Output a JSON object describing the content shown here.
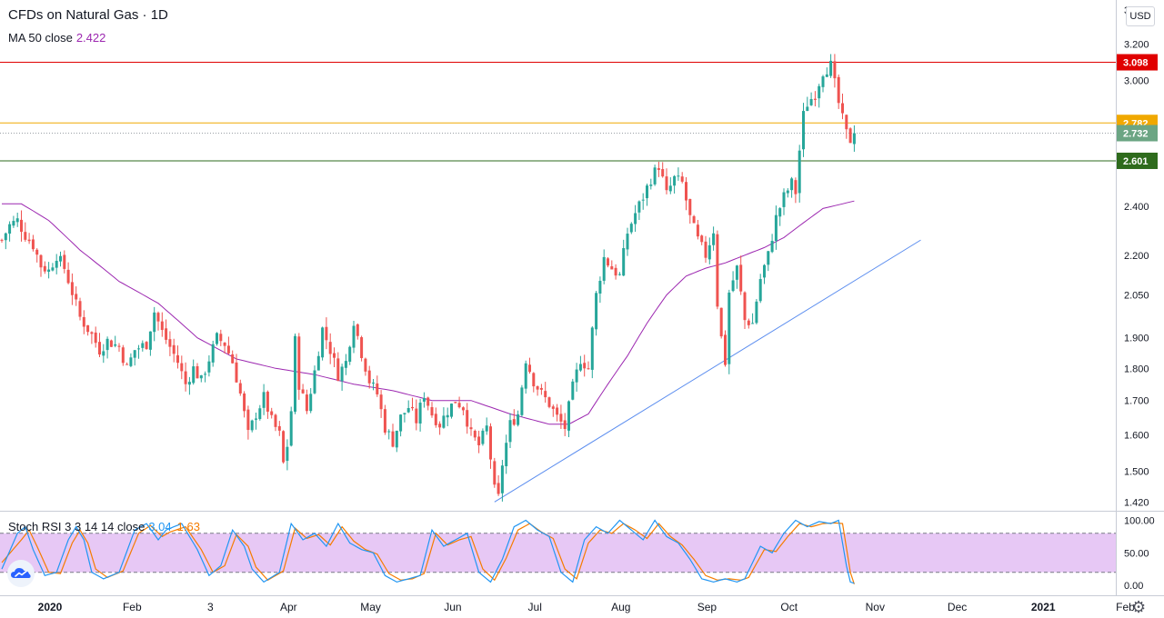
{
  "legend": {
    "symbol": "CFDs on Natural Gas · 1D",
    "ma_label": "MA 50 close",
    "ma_value": "2.422",
    "osc_label": "Stoch RSI 3 3 14 14 close",
    "osc_k": "3.04",
    "osc_d": "1.63"
  },
  "currency_button": "USD",
  "icons": {
    "logo": "tradingview-logo-icon",
    "settings": "gear-icon"
  },
  "colors": {
    "up": "#26a69a",
    "down": "#ef5350",
    "ma": "#9c27b0",
    "trendline": "#5b8def",
    "resistance": "#e00000",
    "mid_level": "#f0a800",
    "support": "#2e6b1c",
    "last_price": "#6ba583",
    "stoch_k": "#2196f3",
    "stoch_d": "#f57c00",
    "stoch_band": "#e7c8f5"
  },
  "chart_data": {
    "type": "candlestick",
    "title": "CFDs on Natural Gas · 1D",
    "x_axis_ticks": [
      "2020",
      "Feb",
      "3",
      "Apr",
      "May",
      "Jun",
      "Jul",
      "Aug",
      "Sep",
      "Oct",
      "Nov",
      "Dec",
      "2021",
      "Feb"
    ],
    "y_axis_ticks": [
      "3.400",
      "3.200",
      "3.000",
      "2.400",
      "2.200",
      "2.050",
      "1.900",
      "1.800",
      "1.700",
      "1.600",
      "1.500",
      "1.420"
    ],
    "y_scale": "log",
    "horizontal_levels": [
      {
        "value": 3.098,
        "label": "3.098",
        "color": "#e00000"
      },
      {
        "value": 2.782,
        "label": "2.782",
        "color": "#f0a800"
      },
      {
        "value": 2.601,
        "label": "2.601",
        "color": "#2e6b1c"
      }
    ],
    "last_price": {
      "value": 2.732,
      "label": "2.732"
    },
    "trendline": {
      "from": [
        126,
        1.42
      ],
      "to": [
        235,
        2.26
      ]
    },
    "close_anchors": [
      [
        0,
        2.26
      ],
      [
        2,
        2.32
      ],
      [
        4,
        2.34
      ],
      [
        6,
        2.28
      ],
      [
        8,
        2.24
      ],
      [
        10,
        2.16
      ],
      [
        12,
        2.14
      ],
      [
        14,
        2.2
      ],
      [
        16,
        2.15
      ],
      [
        18,
        2.06
      ],
      [
        20,
        1.97
      ],
      [
        23,
        1.91
      ],
      [
        25,
        1.86
      ],
      [
        27,
        1.89
      ],
      [
        30,
        1.87
      ],
      [
        32,
        1.8
      ],
      [
        34,
        1.86
      ],
      [
        37,
        1.88
      ],
      [
        39,
        1.99
      ],
      [
        41,
        1.92
      ],
      [
        43,
        1.87
      ],
      [
        45,
        1.82
      ],
      [
        47,
        1.75
      ],
      [
        49,
        1.8
      ],
      [
        51,
        1.76
      ],
      [
        53,
        1.83
      ],
      [
        55,
        1.9
      ],
      [
        57,
        1.88
      ],
      [
        59,
        1.82
      ],
      [
        61,
        1.72
      ],
      [
        63,
        1.6
      ],
      [
        65,
        1.66
      ],
      [
        67,
        1.71
      ],
      [
        69,
        1.64
      ],
      [
        71,
        1.6
      ],
      [
        72,
        1.52
      ],
      [
        73,
        1.57
      ],
      [
        74,
        1.67
      ],
      [
        75,
        1.89
      ],
      [
        76,
        1.75
      ],
      [
        78,
        1.67
      ],
      [
        80,
        1.79
      ],
      [
        82,
        1.93
      ],
      [
        84,
        1.86
      ],
      [
        86,
        1.78
      ],
      [
        88,
        1.82
      ],
      [
        90,
        1.96
      ],
      [
        92,
        1.85
      ],
      [
        94,
        1.76
      ],
      [
        96,
        1.72
      ],
      [
        98,
        1.62
      ],
      [
        100,
        1.58
      ],
      [
        102,
        1.65
      ],
      [
        104,
        1.68
      ],
      [
        106,
        1.64
      ],
      [
        108,
        1.72
      ],
      [
        110,
        1.66
      ],
      [
        112,
        1.63
      ],
      [
        114,
        1.67
      ],
      [
        116,
        1.7
      ],
      [
        118,
        1.68
      ],
      [
        120,
        1.6
      ],
      [
        122,
        1.57
      ],
      [
        124,
        1.62
      ],
      [
        126,
        1.45
      ],
      [
        127,
        1.43
      ],
      [
        128,
        1.52
      ],
      [
        130,
        1.63
      ],
      [
        132,
        1.66
      ],
      [
        134,
        1.83
      ],
      [
        136,
        1.76
      ],
      [
        138,
        1.72
      ],
      [
        140,
        1.69
      ],
      [
        142,
        1.65
      ],
      [
        144,
        1.62
      ],
      [
        146,
        1.74
      ],
      [
        148,
        1.83
      ],
      [
        150,
        1.8
      ],
      [
        152,
        2.05
      ],
      [
        154,
        2.19
      ],
      [
        156,
        2.15
      ],
      [
        158,
        2.12
      ],
      [
        160,
        2.29
      ],
      [
        162,
        2.37
      ],
      [
        164,
        2.44
      ],
      [
        166,
        2.52
      ],
      [
        168,
        2.58
      ],
      [
        170,
        2.45
      ],
      [
        172,
        2.52
      ],
      [
        174,
        2.5
      ],
      [
        176,
        2.35
      ],
      [
        178,
        2.26
      ],
      [
        180,
        2.2
      ],
      [
        182,
        2.3
      ],
      [
        183,
        2.02
      ],
      [
        184,
        1.9
      ],
      [
        185,
        1.82
      ],
      [
        186,
        2.06
      ],
      [
        188,
        2.15
      ],
      [
        190,
        1.96
      ],
      [
        192,
        1.95
      ],
      [
        194,
        2.11
      ],
      [
        196,
        2.2
      ],
      [
        198,
        2.35
      ],
      [
        200,
        2.44
      ],
      [
        202,
        2.5
      ],
      [
        203,
        2.46
      ],
      [
        204,
        2.65
      ],
      [
        205,
        2.82
      ],
      [
        206,
        2.88
      ],
      [
        208,
        2.93
      ],
      [
        210,
        3.05
      ],
      [
        212,
        3.08
      ],
      [
        213,
        2.98
      ],
      [
        214,
        2.88
      ],
      [
        215,
        2.8
      ],
      [
        216,
        2.73
      ],
      [
        217,
        2.7
      ],
      [
        218,
        2.732
      ]
    ],
    "ma50_anchors": [
      [
        0,
        2.41
      ],
      [
        5,
        2.41
      ],
      [
        12,
        2.34
      ],
      [
        20,
        2.22
      ],
      [
        30,
        2.1
      ],
      [
        40,
        2.02
      ],
      [
        50,
        1.9
      ],
      [
        60,
        1.83
      ],
      [
        70,
        1.8
      ],
      [
        80,
        1.78
      ],
      [
        90,
        1.75
      ],
      [
        100,
        1.73
      ],
      [
        110,
        1.7
      ],
      [
        120,
        1.7
      ],
      [
        130,
        1.66
      ],
      [
        140,
        1.63
      ],
      [
        145,
        1.63
      ],
      [
        150,
        1.66
      ],
      [
        155,
        1.75
      ],
      [
        160,
        1.84
      ],
      [
        165,
        1.95
      ],
      [
        170,
        2.05
      ],
      [
        175,
        2.12
      ],
      [
        180,
        2.15
      ],
      [
        185,
        2.17
      ],
      [
        190,
        2.2
      ],
      [
        195,
        2.23
      ],
      [
        200,
        2.27
      ],
      [
        205,
        2.33
      ],
      [
        210,
        2.39
      ],
      [
        215,
        2.41
      ],
      [
        218,
        2.422
      ]
    ],
    "stoch_rsi": {
      "label": "Stoch RSI 3 3 14 14 close",
      "k": 3.04,
      "d": 1.63,
      "y_axis_ticks": [
        "100.00",
        "50.00",
        "0.00"
      ],
      "bands": [
        80,
        20
      ],
      "k_anchors": [
        [
          0,
          25
        ],
        [
          4,
          80
        ],
        [
          6,
          90
        ],
        [
          8,
          55
        ],
        [
          11,
          15
        ],
        [
          14,
          20
        ],
        [
          17,
          70
        ],
        [
          19,
          90
        ],
        [
          21,
          70
        ],
        [
          23,
          20
        ],
        [
          26,
          10
        ],
        [
          30,
          20
        ],
        [
          34,
          85
        ],
        [
          37,
          95
        ],
        [
          40,
          70
        ],
        [
          42,
          85
        ],
        [
          46,
          95
        ],
        [
          50,
          55
        ],
        [
          53,
          15
        ],
        [
          56,
          30
        ],
        [
          59,
          85
        ],
        [
          62,
          60
        ],
        [
          64,
          25
        ],
        [
          67,
          5
        ],
        [
          71,
          20
        ],
        [
          74,
          95
        ],
        [
          77,
          70
        ],
        [
          80,
          80
        ],
        [
          83,
          60
        ],
        [
          86,
          95
        ],
        [
          89,
          65
        ],
        [
          92,
          55
        ],
        [
          95,
          50
        ],
        [
          98,
          15
        ],
        [
          101,
          5
        ],
        [
          104,
          10
        ],
        [
          107,
          15
        ],
        [
          110,
          85
        ],
        [
          113,
          60
        ],
        [
          116,
          70
        ],
        [
          119,
          80
        ],
        [
          122,
          20
        ],
        [
          125,
          5
        ],
        [
          128,
          40
        ],
        [
          131,
          90
        ],
        [
          134,
          100
        ],
        [
          137,
          85
        ],
        [
          140,
          75
        ],
        [
          143,
          20
        ],
        [
          146,
          5
        ],
        [
          149,
          70
        ],
        [
          152,
          90
        ],
        [
          155,
          80
        ],
        [
          158,
          100
        ],
        [
          161,
          85
        ],
        [
          164,
          70
        ],
        [
          167,
          100
        ],
        [
          170,
          75
        ],
        [
          173,
          65
        ],
        [
          176,
          40
        ],
        [
          179,
          10
        ],
        [
          182,
          5
        ],
        [
          185,
          10
        ],
        [
          188,
          5
        ],
        [
          190,
          10
        ],
        [
          194,
          60
        ],
        [
          197,
          50
        ],
        [
          200,
          80
        ],
        [
          203,
          100
        ],
        [
          206,
          90
        ],
        [
          209,
          98
        ],
        [
          212,
          95
        ],
        [
          214,
          100
        ],
        [
          216,
          30
        ],
        [
          217,
          5
        ],
        [
          218,
          3.04
        ]
      ],
      "d_anchors": [
        [
          0,
          35
        ],
        [
          5,
          70
        ],
        [
          7,
          85
        ],
        [
          9,
          60
        ],
        [
          12,
          20
        ],
        [
          15,
          18
        ],
        [
          18,
          65
        ],
        [
          20,
          85
        ],
        [
          22,
          65
        ],
        [
          24,
          25
        ],
        [
          27,
          12
        ],
        [
          31,
          22
        ],
        [
          35,
          80
        ],
        [
          38,
          92
        ],
        [
          41,
          75
        ],
        [
          43,
          82
        ],
        [
          47,
          90
        ],
        [
          51,
          55
        ],
        [
          54,
          20
        ],
        [
          57,
          30
        ],
        [
          60,
          78
        ],
        [
          63,
          60
        ],
        [
          65,
          28
        ],
        [
          68,
          8
        ],
        [
          72,
          22
        ],
        [
          75,
          88
        ],
        [
          78,
          72
        ],
        [
          81,
          78
        ],
        [
          84,
          62
        ],
        [
          87,
          90
        ],
        [
          90,
          68
        ],
        [
          93,
          55
        ],
        [
          96,
          48
        ],
        [
          99,
          18
        ],
        [
          102,
          8
        ],
        [
          105,
          10
        ],
        [
          108,
          18
        ],
        [
          111,
          80
        ],
        [
          114,
          62
        ],
        [
          117,
          70
        ],
        [
          120,
          75
        ],
        [
          123,
          25
        ],
        [
          126,
          8
        ],
        [
          129,
          42
        ],
        [
          132,
          85
        ],
        [
          135,
          95
        ],
        [
          138,
          82
        ],
        [
          141,
          72
        ],
        [
          144,
          25
        ],
        [
          147,
          10
        ],
        [
          150,
          65
        ],
        [
          153,
          85
        ],
        [
          156,
          80
        ],
        [
          159,
          95
        ],
        [
          162,
          85
        ],
        [
          165,
          72
        ],
        [
          168,
          95
        ],
        [
          171,
          75
        ],
        [
          174,
          62
        ],
        [
          177,
          40
        ],
        [
          180,
          15
        ],
        [
          183,
          8
        ],
        [
          186,
          10
        ],
        [
          189,
          8
        ],
        [
          191,
          12
        ],
        [
          195,
          55
        ],
        [
          198,
          52
        ],
        [
          201,
          75
        ],
        [
          204,
          95
        ],
        [
          207,
          90
        ],
        [
          210,
          95
        ],
        [
          213,
          96
        ],
        [
          215,
          95
        ],
        [
          217,
          20
        ],
        [
          218,
          1.63
        ]
      ]
    }
  }
}
